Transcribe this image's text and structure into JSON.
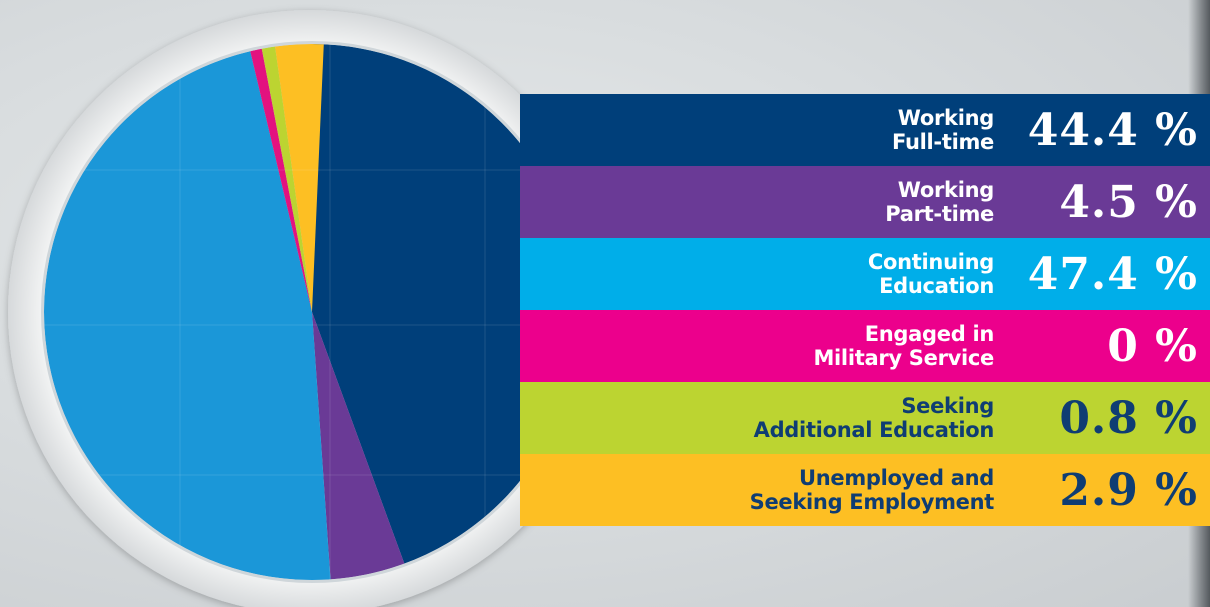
{
  "chart_data": {
    "type": "pie",
    "slices": [
      {
        "value": 44.4,
        "display": "44.4 %",
        "label_line1": "Working",
        "label_line2": "Full-time",
        "color": "#003f7a",
        "text_color": "#ffffff"
      },
      {
        "value": 4.5,
        "display": "4.5 %",
        "label_line1": "Working",
        "label_line2": "Part-time",
        "color": "#6a3a96",
        "text_color": "#ffffff"
      },
      {
        "value": 47.4,
        "display": "47.4 %",
        "label_line1": "Continuing",
        "label_line2": "Education",
        "color": "#1b97d8",
        "text_color": "#ffffff"
      },
      {
        "value": 0,
        "display": "0 %",
        "label_line1": "Engaged in",
        "label_line2": "Military Service",
        "color": "#e3127f",
        "text_color": "#ffffff"
      },
      {
        "value": 0.8,
        "display": "0.8 %",
        "label_line1": "Seeking",
        "label_line2": "Additional Education",
        "color": "#bcd431",
        "text_color": "#0f3d73"
      },
      {
        "value": 2.9,
        "display": "2.9 %",
        "label_line1": "Unemployed and",
        "label_line2": "Seeking Employment",
        "color": "#fdbf23",
        "text_color": "#0f3d73"
      }
    ],
    "band_colors": [
      "#003f7a",
      "#6a3a96",
      "#00aee9",
      "#ec008c",
      "#bcd431",
      "#fdbf23"
    ],
    "legend_position": "right"
  }
}
